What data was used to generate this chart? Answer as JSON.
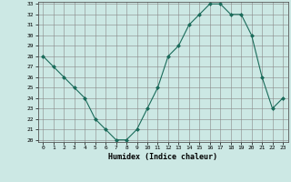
{
  "x": [
    0,
    1,
    2,
    3,
    4,
    5,
    6,
    7,
    8,
    9,
    10,
    11,
    12,
    13,
    14,
    15,
    16,
    17,
    18,
    19,
    20,
    21,
    22,
    23
  ],
  "y": [
    28,
    27,
    26,
    25,
    24,
    22,
    21,
    20,
    20,
    21,
    23,
    25,
    28,
    29,
    31,
    32,
    33,
    33,
    32,
    32,
    30,
    26,
    23,
    24
  ],
  "line_color": "#1a6b5a",
  "marker": "D",
  "marker_size": 2,
  "bg_color": "#cce8e4",
  "grid_color": "#aaaaaa",
  "xlabel": "Humidex (Indice chaleur)",
  "ylim": [
    20,
    33
  ],
  "xlim": [
    -0.5,
    23.5
  ],
  "yticks": [
    20,
    21,
    22,
    23,
    24,
    25,
    26,
    27,
    28,
    29,
    30,
    31,
    32,
    33
  ],
  "xticks": [
    0,
    1,
    2,
    3,
    4,
    5,
    6,
    7,
    8,
    9,
    10,
    11,
    12,
    13,
    14,
    15,
    16,
    17,
    18,
    19,
    20,
    21,
    22,
    23
  ]
}
